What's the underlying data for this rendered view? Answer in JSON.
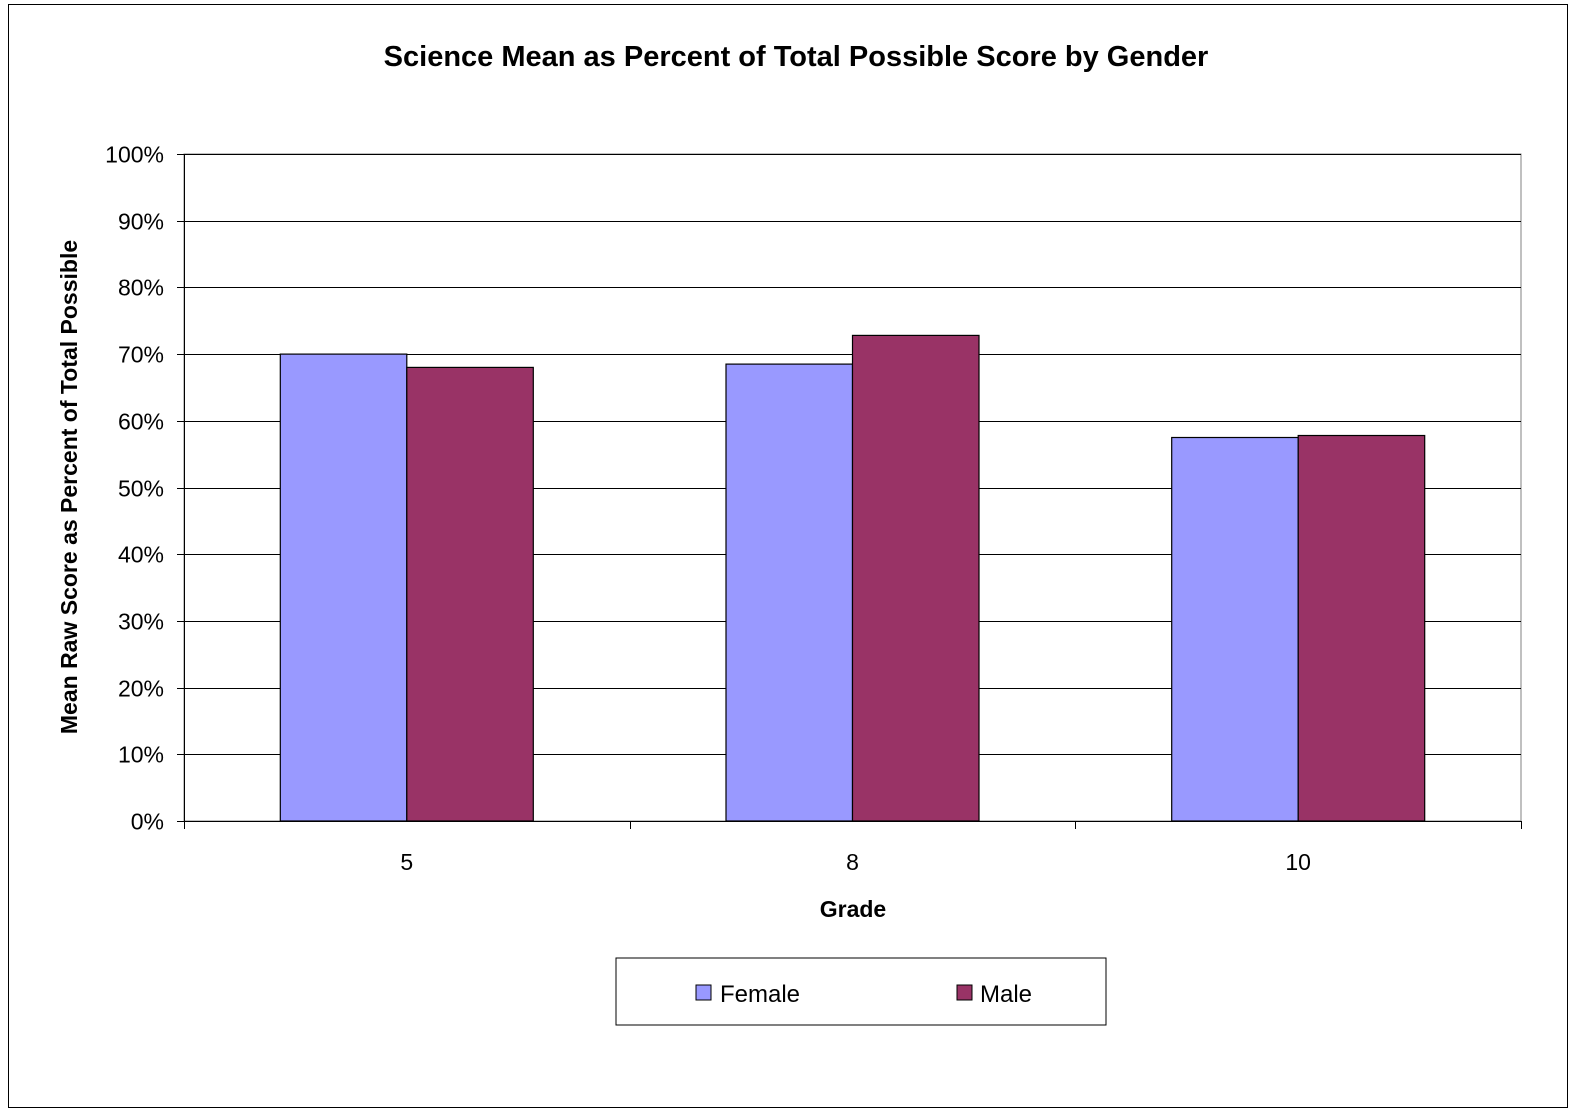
{
  "chart_data": {
    "type": "bar",
    "title": "Science Mean as Percent of Total Possible Score by Gender",
    "xlabel": "Grade",
    "ylabel": "Mean Raw Score as Percent of Total Possible",
    "categories": [
      "5",
      "8",
      "10"
    ],
    "series": [
      {
        "name": "Female",
        "color": "#9999FF",
        "values": [
          70,
          68.5,
          57.5
        ]
      },
      {
        "name": "Male",
        "color": "#993366",
        "values": [
          68,
          72.8,
          57.8
        ]
      }
    ],
    "ylim": [
      0,
      100
    ],
    "yticks": [
      0,
      10,
      20,
      30,
      40,
      50,
      60,
      70,
      80,
      90,
      100
    ],
    "ytick_labels": [
      "0%",
      "10%",
      "20%",
      "30%",
      "40%",
      "50%",
      "60%",
      "70%",
      "80%",
      "90%",
      "100%"
    ],
    "grid": true,
    "legend_position": "bottom"
  }
}
